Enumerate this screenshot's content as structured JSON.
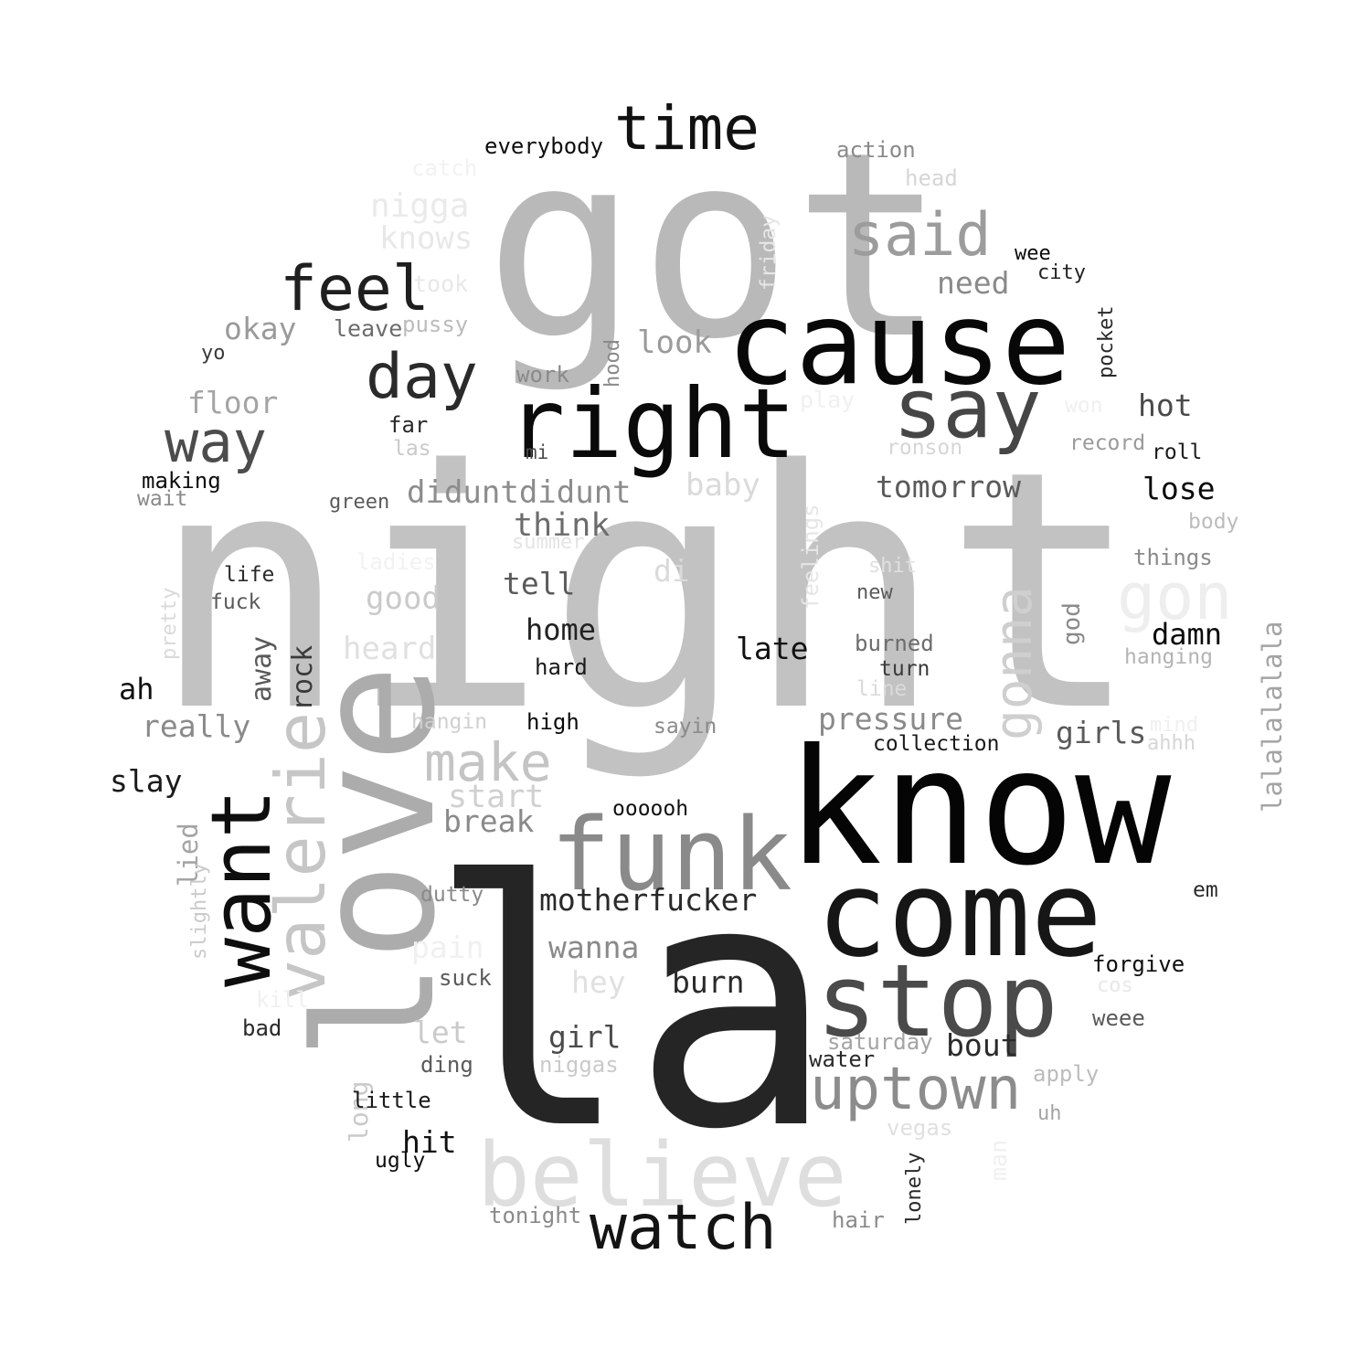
{
  "words": [
    {
      "text": "night",
      "color": "#c2c2c2"
    },
    {
      "text": "la",
      "color": "#252525"
    },
    {
      "text": "got",
      "color": "#b9b9b9"
    },
    {
      "text": "know",
      "color": "#050505"
    },
    {
      "text": "cause",
      "color": "#080808"
    },
    {
      "text": "love",
      "color": "#acacac"
    },
    {
      "text": "come",
      "color": "#161616"
    },
    {
      "text": "right",
      "color": "#0a0a0a"
    },
    {
      "text": "stop",
      "color": "#4a4a4a"
    },
    {
      "text": "funk",
      "color": "#8a8a8a"
    },
    {
      "text": "believe",
      "color": "#dedede"
    },
    {
      "text": "want",
      "color": "#0e0e0e"
    },
    {
      "text": "say",
      "color": "#464646"
    },
    {
      "text": "valerie",
      "color": "#c6c6c6"
    },
    {
      "text": "time",
      "color": "#111111"
    },
    {
      "text": "said",
      "color": "#9c9c9c"
    },
    {
      "text": "uptown",
      "color": "#8c8c8c"
    },
    {
      "text": "watch",
      "color": "#141414"
    },
    {
      "text": "feel",
      "color": "#1f1f1f"
    },
    {
      "text": "day",
      "color": "#2a2a2a"
    },
    {
      "text": "way",
      "color": "#4c4c4c"
    },
    {
      "text": "make",
      "color": "#c4c4c4"
    },
    {
      "text": "gonna",
      "color": "#cfcfcf"
    },
    {
      "text": "gon",
      "color": "#eeeeee"
    },
    {
      "text": "everybody",
      "color": "#0e0e0e"
    },
    {
      "text": "action",
      "color": "#8a8a8a"
    },
    {
      "text": "head",
      "color": "#d6d6d6"
    },
    {
      "text": "catch",
      "color": "#f2f2f2"
    },
    {
      "text": "nigga",
      "color": "#eaeaea"
    },
    {
      "text": "knows",
      "color": "#e8e8e8"
    },
    {
      "text": "friday",
      "color": "#e6e6e6"
    },
    {
      "text": "wee",
      "color": "#0a0a0a"
    },
    {
      "text": "city",
      "color": "#222222"
    },
    {
      "text": "took",
      "color": "#e8e8e8"
    },
    {
      "text": "need",
      "color": "#8a8a8a"
    },
    {
      "text": "okay",
      "color": "#9a9a9a"
    },
    {
      "text": "leave",
      "color": "#6c6c6c"
    },
    {
      "text": "pussy",
      "color": "#bcbcbc"
    },
    {
      "text": "pocket",
      "color": "#2a2a2a"
    },
    {
      "text": "yo",
      "color": "#3a3a3a"
    },
    {
      "text": "look",
      "color": "#9a9a9a"
    },
    {
      "text": "hood",
      "color": "#8a8a8a"
    },
    {
      "text": "work",
      "color": "#8a8a8a"
    },
    {
      "text": "floor",
      "color": "#a4a4a4"
    },
    {
      "text": "play",
      "color": "#f0f0f0"
    },
    {
      "text": "won",
      "color": "#f0f0f0"
    },
    {
      "text": "hot",
      "color": "#4a4a4a"
    },
    {
      "text": "far",
      "color": "#2a2a2a"
    },
    {
      "text": "las",
      "color": "#cacaca"
    },
    {
      "text": "mi",
      "color": "#4a4a4a"
    },
    {
      "text": "ronson",
      "color": "#d6d6d6"
    },
    {
      "text": "record",
      "color": "#9a9a9a"
    },
    {
      "text": "roll",
      "color": "#1a1a1a"
    },
    {
      "text": "making",
      "color": "#0e0e0e"
    },
    {
      "text": "wait",
      "color": "#8a8a8a"
    },
    {
      "text": "green",
      "color": "#5a5a5a"
    },
    {
      "text": "diduntdidunt",
      "color": "#8c8c8c"
    },
    {
      "text": "baby",
      "color": "#dadada"
    },
    {
      "text": "tomorrow",
      "color": "#5a5a5a"
    },
    {
      "text": "lose",
      "color": "#0a0a0a"
    },
    {
      "text": "think",
      "color": "#6c6c6c"
    },
    {
      "text": "summer",
      "color": "#e4e4e4"
    },
    {
      "text": "feelings",
      "color": "#e6e6e6"
    },
    {
      "text": "body",
      "color": "#bcbcbc"
    },
    {
      "text": "ladies",
      "color": "#f2f2f2"
    },
    {
      "text": "things",
      "color": "#8a8a8a"
    },
    {
      "text": "di",
      "color": "#dadada"
    },
    {
      "text": "shit",
      "color": "#e0e0e0"
    },
    {
      "text": "life",
      "color": "#2a2a2a"
    },
    {
      "text": "tell",
      "color": "#5a5a5a"
    },
    {
      "text": "fuck",
      "color": "#5a5a5a"
    },
    {
      "text": "new",
      "color": "#5a5a5a"
    },
    {
      "text": "god",
      "color": "#8a8a8a"
    },
    {
      "text": "lalalalalala",
      "color": "#a4a4a4"
    },
    {
      "text": "pretty",
      "color": "#dadada"
    },
    {
      "text": "good",
      "color": "#cacaca"
    },
    {
      "text": "home",
      "color": "#222222"
    },
    {
      "text": "damn",
      "color": "#0a0a0a"
    },
    {
      "text": "burned",
      "color": "#6c6c6c"
    },
    {
      "text": "late",
      "color": "#111111"
    },
    {
      "text": "heard",
      "color": "#e0e0e0"
    },
    {
      "text": "hanging",
      "color": "#b4b4b4"
    },
    {
      "text": "hard",
      "color": "#1a1a1a"
    },
    {
      "text": "turn",
      "color": "#3a3a3a"
    },
    {
      "text": "away",
      "color": "#5a5a5a"
    },
    {
      "text": "rock",
      "color": "#3a3a3a"
    },
    {
      "text": "line",
      "color": "#dadada"
    },
    {
      "text": "ah",
      "color": "#111111"
    },
    {
      "text": "pressure",
      "color": "#8a8a8a"
    },
    {
      "text": "hangin",
      "color": "#d0d0d0"
    },
    {
      "text": "high",
      "color": "#0a0a0a"
    },
    {
      "text": "sayin",
      "color": "#8a8a8a"
    },
    {
      "text": "really",
      "color": "#8a8a8a"
    },
    {
      "text": "girls",
      "color": "#5a5a5a"
    },
    {
      "text": "mind",
      "color": "#f0f0f0"
    },
    {
      "text": "ahhh",
      "color": "#d6d6d6"
    },
    {
      "text": "collection",
      "color": "#1a1a1a"
    },
    {
      "text": "slay",
      "color": "#1a1a1a"
    },
    {
      "text": "start",
      "color": "#d0d0d0"
    },
    {
      "text": "oooooh",
      "color": "#111111"
    },
    {
      "text": "break",
      "color": "#8a8a8a"
    },
    {
      "text": "lied",
      "color": "#a4a4a4"
    },
    {
      "text": "slightly",
      "color": "#cacaca"
    },
    {
      "text": "dutty",
      "color": "#8a8a8a"
    },
    {
      "text": "motherfucker",
      "color": "#2a2a2a"
    },
    {
      "text": "em",
      "color": "#2a2a2a"
    },
    {
      "text": "pain",
      "color": "#f0f0f0"
    },
    {
      "text": "wanna",
      "color": "#8a8a8a"
    },
    {
      "text": "forgive",
      "color": "#0e0e0e"
    },
    {
      "text": "suck",
      "color": "#5a5a5a"
    },
    {
      "text": "hey",
      "color": "#e0e0e0"
    },
    {
      "text": "burn",
      "color": "#2a2a2a"
    },
    {
      "text": "cos",
      "color": "#e8e8e8"
    },
    {
      "text": "kill",
      "color": "#f0f0f0"
    },
    {
      "text": "weee",
      "color": "#5a5a5a"
    },
    {
      "text": "bad",
      "color": "#2a2a2a"
    },
    {
      "text": "let",
      "color": "#cacaca"
    },
    {
      "text": "girl",
      "color": "#4a4a4a"
    },
    {
      "text": "saturday",
      "color": "#a4a4a4"
    },
    {
      "text": "bout",
      "color": "#2a2a2a"
    },
    {
      "text": "ding",
      "color": "#5a5a5a"
    },
    {
      "text": "niggas",
      "color": "#cacaca"
    },
    {
      "text": "water",
      "color": "#2a2a2a"
    },
    {
      "text": "apply",
      "color": "#bcbcbc"
    },
    {
      "text": "long",
      "color": "#cacaca"
    },
    {
      "text": "little",
      "color": "#1a1a1a"
    },
    {
      "text": "uh",
      "color": "#a4a4a4"
    },
    {
      "text": "vegas",
      "color": "#e0e0e0"
    },
    {
      "text": "hit",
      "color": "#111111"
    },
    {
      "text": "man",
      "color": "#f0f0f0"
    },
    {
      "text": "ugly",
      "color": "#0e0e0e"
    },
    {
      "text": "lonely",
      "color": "#2a2a2a"
    },
    {
      "text": "tonight",
      "color": "#8a8a8a"
    },
    {
      "text": "hair",
      "color": "#8a8a8a"
    }
  ]
}
